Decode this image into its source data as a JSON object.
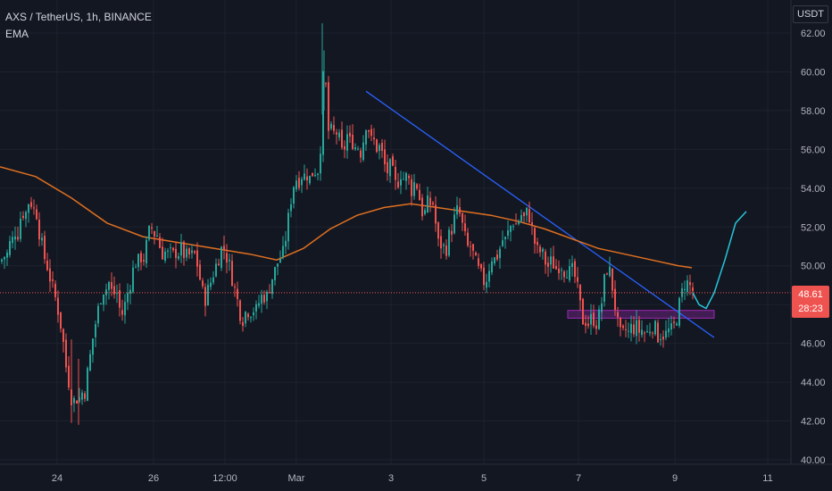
{
  "header": {
    "symbol_line": "AXS / TetherUS, 1h, BINANCE",
    "indicator": "EMA",
    "unit": "USDT"
  },
  "price_badge": {
    "price": "48.61",
    "countdown": "28:23"
  },
  "colors": {
    "background": "#131722",
    "grid": "#1e222d",
    "up": "#26a69a",
    "down": "#ef5350",
    "ema": "#e07020",
    "trendline": "#2962ff",
    "zone": "#9c27b0",
    "projection": "#26c6da",
    "price_line": "#ef5350"
  },
  "chart_data": {
    "type": "line",
    "title": "AXS / TetherUS, 1h, BINANCE",
    "ylim": [
      40,
      63
    ],
    "y_ticks": [
      "62.00",
      "60.00",
      "58.00",
      "56.00",
      "54.00",
      "52.00",
      "50.00",
      "48.00",
      "46.00",
      "44.00",
      "42.00",
      "40.00"
    ],
    "x_tick_labels": [
      "24",
      "26",
      "12:00",
      "Mar",
      "3",
      "5",
      "7",
      "9",
      "11"
    ],
    "last_price": 48.61,
    "price_path": [
      [
        0,
        50.2
      ],
      [
        3,
        50.6
      ],
      [
        6,
        50.3
      ],
      [
        9,
        51.2
      ],
      [
        12,
        51.0
      ],
      [
        15,
        52.0
      ],
      [
        18,
        51.4
      ],
      [
        21,
        52.3
      ],
      [
        24,
        52.9
      ],
      [
        27,
        52.5
      ],
      [
        30,
        53.2
      ],
      [
        33,
        53.5
      ],
      [
        36,
        52.8
      ],
      [
        39,
        53.1
      ],
      [
        42,
        52.0
      ],
      [
        45,
        51.3
      ],
      [
        48,
        50.5
      ],
      [
        51,
        50.2
      ],
      [
        54,
        49.6
      ],
      [
        57,
        49.0
      ],
      [
        60,
        48.5
      ],
      [
        63,
        48.0
      ],
      [
        66,
        47.2
      ],
      [
        69,
        46.5
      ],
      [
        72,
        45.0
      ],
      [
        75,
        44.4
      ],
      [
        78,
        43.4
      ],
      [
        81,
        42.9
      ],
      [
        84,
        43.3
      ],
      [
        87,
        43.0
      ],
      [
        90,
        43.6
      ],
      [
        93,
        43.2
      ],
      [
        96,
        44.2
      ],
      [
        99,
        45.0
      ],
      [
        102,
        46.0
      ],
      [
        105,
        46.8
      ],
      [
        108,
        47.5
      ],
      [
        111,
        48.2
      ],
      [
        114,
        48.9
      ],
      [
        117,
        48.6
      ],
      [
        120,
        49.3
      ],
      [
        123,
        48.8
      ],
      [
        126,
        48.4
      ],
      [
        129,
        48.9
      ],
      [
        132,
        48.0
      ],
      [
        135,
        47.4
      ],
      [
        138,
        47.8
      ],
      [
        141,
        48.4
      ],
      [
        144,
        49.0
      ],
      [
        147,
        49.5
      ],
      [
        150,
        50.3
      ],
      [
        153,
        50.0
      ],
      [
        156,
        50.6
      ],
      [
        159,
        50.2
      ],
      [
        162,
        50.8
      ],
      [
        165,
        51.5
      ],
      [
        168,
        52.1
      ],
      [
        171,
        51.6
      ],
      [
        174,
        51.8
      ],
      [
        177,
        51.2
      ],
      [
        180,
        50.6
      ],
      [
        183,
        50.8
      ],
      [
        186,
        50.5
      ],
      [
        189,
        50.7
      ],
      [
        192,
        50.4
      ],
      [
        195,
        50.8
      ],
      [
        198,
        50.6
      ],
      [
        201,
        50.9
      ],
      [
        204,
        50.7
      ],
      [
        207,
        50.4
      ],
      [
        210,
        50.6
      ],
      [
        213,
        50.4
      ],
      [
        216,
        50.7
      ],
      [
        219,
        50.3
      ],
      [
        222,
        49.6
      ],
      [
        225,
        48.8
      ],
      [
        228,
        48.2
      ],
      [
        231,
        48.6
      ],
      [
        234,
        49.0
      ],
      [
        237,
        49.5
      ],
      [
        240,
        49.9
      ],
      [
        243,
        50.3
      ],
      [
        246,
        50.8
      ],
      [
        249,
        51.0
      ],
      [
        252,
        50.6
      ],
      [
        255,
        50.2
      ],
      [
        258,
        49.6
      ],
      [
        261,
        49.0
      ],
      [
        264,
        48.4
      ],
      [
        267,
        47.8
      ],
      [
        270,
        47.2
      ],
      [
        273,
        47.5
      ],
      [
        276,
        47.8
      ],
      [
        279,
        47.6
      ],
      [
        282,
        47.9
      ],
      [
        285,
        47.5
      ],
      [
        288,
        48.0
      ],
      [
        291,
        48.3
      ],
      [
        294,
        48.6
      ],
      [
        297,
        48.2
      ],
      [
        300,
        48.8
      ],
      [
        303,
        49.3
      ],
      [
        306,
        49.6
      ],
      [
        309,
        50.0
      ],
      [
        312,
        50.5
      ],
      [
        315,
        50.3
      ],
      [
        318,
        51.2
      ],
      [
        321,
        52.0
      ],
      [
        324,
        53.2
      ],
      [
        327,
        54.0
      ],
      [
        330,
        54.6
      ],
      [
        333,
        54.3
      ],
      [
        336,
        54.8
      ],
      [
        339,
        54.5
      ],
      [
        342,
        54.9
      ],
      [
        345,
        54.4
      ],
      [
        348,
        54.7
      ],
      [
        351,
        55.0
      ],
      [
        354,
        54.8
      ],
      [
        357,
        55.3
      ],
      [
        360,
        58.0
      ],
      [
        362,
        60.3
      ],
      [
        364,
        59.2
      ],
      [
        366,
        57.6
      ],
      [
        368,
        56.3
      ],
      [
        371,
        57.2
      ],
      [
        374,
        56.6
      ],
      [
        377,
        57.0
      ],
      [
        380,
        56.2
      ],
      [
        383,
        55.6
      ],
      [
        386,
        56.4
      ],
      [
        389,
        56.9
      ],
      [
        392,
        56.1
      ],
      [
        395,
        56.6
      ],
      [
        398,
        55.9
      ],
      [
        401,
        56.3
      ],
      [
        404,
        55.7
      ],
      [
        407,
        56.9
      ],
      [
        410,
        57.6
      ],
      [
        413,
        56.8
      ],
      [
        416,
        56.2
      ],
      [
        419,
        56.5
      ],
      [
        422,
        55.9
      ],
      [
        425,
        56.2
      ],
      [
        428,
        55.5
      ],
      [
        431,
        55.0
      ],
      [
        434,
        54.8
      ],
      [
        437,
        55.2
      ],
      [
        440,
        54.5
      ],
      [
        443,
        54.0
      ],
      [
        446,
        54.6
      ],
      [
        449,
        54.9
      ],
      [
        452,
        54.3
      ],
      [
        455,
        54.7
      ],
      [
        458,
        54.2
      ],
      [
        461,
        53.8
      ],
      [
        464,
        54.5
      ],
      [
        467,
        54.0
      ],
      [
        470,
        53.2
      ],
      [
        473,
        52.6
      ],
      [
        476,
        52.8
      ],
      [
        479,
        53.4
      ],
      [
        482,
        53.1
      ],
      [
        485,
        53.3
      ],
      [
        488,
        51.6
      ],
      [
        491,
        50.9
      ],
      [
        494,
        51.2
      ],
      [
        497,
        50.8
      ],
      [
        500,
        51.0
      ],
      [
        503,
        51.8
      ],
      [
        506,
        52.0
      ],
      [
        509,
        52.6
      ],
      [
        512,
        52.9
      ],
      [
        515,
        52.5
      ],
      [
        518,
        51.8
      ],
      [
        521,
        51.2
      ],
      [
        524,
        50.8
      ],
      [
        527,
        51.1
      ],
      [
        530,
        50.3
      ],
      [
        533,
        50.0
      ],
      [
        536,
        49.6
      ],
      [
        539,
        49.4
      ],
      [
        542,
        49.1
      ],
      [
        545,
        49.5
      ],
      [
        548,
        50.2
      ],
      [
        551,
        50.6
      ],
      [
        554,
        50.2
      ],
      [
        557,
        50.7
      ],
      [
        560,
        51.0
      ],
      [
        563,
        51.5
      ],
      [
        566,
        51.2
      ],
      [
        569,
        51.9
      ],
      [
        572,
        52.1
      ],
      [
        575,
        52.4
      ],
      [
        578,
        52.0
      ],
      [
        581,
        52.5
      ],
      [
        584,
        52.7
      ],
      [
        587,
        52.3
      ],
      [
        590,
        52.9
      ],
      [
        593,
        52.4
      ],
      [
        596,
        51.6
      ],
      [
        599,
        51.0
      ],
      [
        602,
        50.6
      ],
      [
        605,
        50.8
      ],
      [
        608,
        50.4
      ],
      [
        611,
        50.1
      ],
      [
        614,
        49.9
      ],
      [
        617,
        50.3
      ],
      [
        620,
        50.0
      ],
      [
        623,
        49.8
      ],
      [
        626,
        50.2
      ],
      [
        629,
        50.0
      ],
      [
        632,
        49.7
      ],
      [
        635,
        49.9
      ],
      [
        638,
        49.5
      ],
      [
        641,
        49.8
      ],
      [
        644,
        49.2
      ],
      [
        647,
        48.5
      ],
      [
        650,
        47.6
      ],
      [
        653,
        47.0
      ],
      [
        656,
        47.3
      ],
      [
        659,
        46.9
      ],
      [
        662,
        47.4
      ],
      [
        665,
        47.2
      ],
      [
        668,
        47.0
      ],
      [
        671,
        47.6
      ],
      [
        674,
        48.4
      ],
      [
        677,
        49.6
      ],
      [
        680,
        50.0
      ],
      [
        683,
        49.5
      ],
      [
        686,
        48.6
      ],
      [
        689,
        47.6
      ],
      [
        692,
        46.6
      ],
      [
        695,
        46.3
      ],
      [
        698,
        46.5
      ],
      [
        701,
        46.8
      ],
      [
        704,
        46.4
      ],
      [
        707,
        47.0
      ],
      [
        710,
        46.7
      ],
      [
        713,
        46.9
      ],
      [
        716,
        46.5
      ],
      [
        719,
        46.8
      ],
      [
        722,
        46.4
      ],
      [
        725,
        46.6
      ],
      [
        728,
        46.9
      ],
      [
        731,
        47.0
      ],
      [
        734,
        46.6
      ],
      [
        737,
        46.3
      ],
      [
        740,
        46.6
      ],
      [
        743,
        46.4
      ],
      [
        746,
        46.5
      ],
      [
        749,
        46.7
      ],
      [
        752,
        46.6
      ],
      [
        755,
        47.0
      ],
      [
        758,
        47.6
      ],
      [
        761,
        48.2
      ],
      [
        764,
        48.8
      ],
      [
        767,
        49.3
      ],
      [
        770,
        49.0
      ],
      [
        773,
        48.9
      ],
      [
        776,
        48.61
      ]
    ],
    "ema_path": [
      [
        0,
        55.1
      ],
      [
        40,
        54.6
      ],
      [
        80,
        53.5
      ],
      [
        120,
        52.2
      ],
      [
        160,
        51.5
      ],
      [
        200,
        51.2
      ],
      [
        240,
        50.9
      ],
      [
        280,
        50.6
      ],
      [
        310,
        50.3
      ],
      [
        340,
        50.9
      ],
      [
        370,
        51.9
      ],
      [
        400,
        52.6
      ],
      [
        430,
        53.0
      ],
      [
        460,
        53.2
      ],
      [
        490,
        53.0
      ],
      [
        520,
        52.8
      ],
      [
        550,
        52.6
      ],
      [
        580,
        52.3
      ],
      [
        610,
        51.9
      ],
      [
        640,
        51.4
      ],
      [
        670,
        50.9
      ],
      [
        700,
        50.6
      ],
      [
        730,
        50.3
      ],
      [
        760,
        50.0
      ],
      [
        775,
        49.9
      ]
    ],
    "trendline": [
      [
        410,
        59.0
      ],
      [
        800,
        46.3
      ]
    ],
    "zone": {
      "x0": 636,
      "x1": 800,
      "y0": 47.3,
      "y1": 47.7
    },
    "projection": [
      [
        776,
        48.61
      ],
      [
        783,
        48.0
      ],
      [
        791,
        47.8
      ],
      [
        800,
        48.6
      ],
      [
        812,
        50.3
      ],
      [
        824,
        52.2
      ],
      [
        836,
        52.8
      ]
    ],
    "x_tick_pos": [
      64,
      172,
      252,
      332,
      438,
      542,
      648,
      756,
      860
    ]
  }
}
